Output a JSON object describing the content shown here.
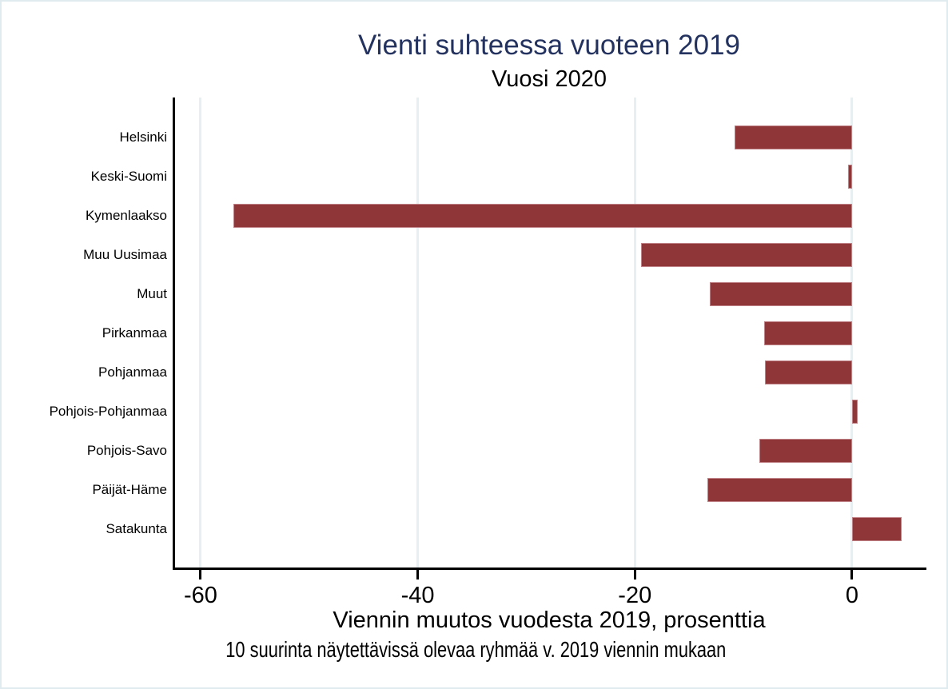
{
  "chart_data": {
    "type": "bar",
    "orientation": "horizontal",
    "title": "Vienti suhteessa vuoteen 2019",
    "subtitle": "Vuosi 2020",
    "xlabel": "Viennin muutos vuodesta 2019, prosenttia",
    "note": "10 suurinta näytettävissä olevaa ryhmää v. 2019 viennin mukaan",
    "categories": [
      "Helsinki",
      "Keski-Suomi",
      "Kymenlaakso",
      "Muu Uusimaa",
      "Muut",
      "Pirkanmaa",
      "Pohjanmaa",
      "Pohjois-Pohjanmaa",
      "Pohjois-Savo",
      "Päijät-Häme",
      "Satakunta"
    ],
    "values": [
      -10.8,
      -0.4,
      -57.0,
      -19.4,
      -13.1,
      -8.1,
      -8.0,
      0.5,
      -8.5,
      -13.3,
      4.6
    ],
    "xticks": [
      -60,
      -40,
      -20,
      0
    ],
    "xtick_labels": [
      "-60",
      "-40",
      "-20",
      "0"
    ],
    "xlim": [
      -62.35,
      6.85
    ],
    "grid": true,
    "legend": "none",
    "colors": {
      "bar_fill": "#8F3639",
      "bar_outline": "#c08186",
      "title_text": "#23325F",
      "gridline": "#e7eff1",
      "axis_line": "#000000",
      "figure_border": "#dfebee",
      "background": "#ffffff"
    }
  }
}
